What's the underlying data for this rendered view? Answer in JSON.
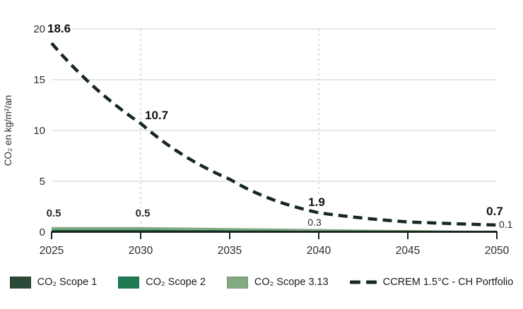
{
  "chart": {
    "y_axis_label": "CO₂ en kg/m²/an",
    "y_ticks": [
      0,
      5,
      10,
      15,
      20
    ],
    "x_ticks": [
      2025,
      2030,
      2035,
      2040,
      2045,
      2050
    ],
    "x_gridline_years": [
      2030,
      2040
    ],
    "y_max": 20,
    "grid": "horizontal solid, vertical dashed at labeled decades",
    "colors": {
      "scope1": "#2c4a3a",
      "scope2": "#1f7a53",
      "scope3": "#83aa81",
      "ccrem_line": "#17291f",
      "gridline": "#cfcfcf",
      "vertical_gridline": "#bdbdbd",
      "tick_text": "#2c2c2c",
      "label_text": "#101010"
    }
  },
  "chart_data": {
    "type": "line+area",
    "x": [
      2025,
      2030,
      2035,
      2040,
      2045,
      2050
    ],
    "area_total": [
      0.5,
      0.5,
      0.4,
      0.3,
      0.2,
      0.1
    ],
    "series": [
      {
        "name": "CO₂ Scope 1",
        "type": "area",
        "color": "#2c4a3a",
        "values": [
          0.1,
          0.1,
          0.08,
          0.06,
          0.04,
          0.02
        ]
      },
      {
        "name": "CO₂ Scope 2",
        "type": "area",
        "color": "#1f7a53",
        "values": [
          0.15,
          0.15,
          0.12,
          0.09,
          0.06,
          0.03
        ]
      },
      {
        "name": "CO₂ Scope 3.13",
        "type": "area",
        "color": "#83aa81",
        "values": [
          0.25,
          0.25,
          0.2,
          0.15,
          0.1,
          0.05
        ]
      }
    ],
    "line": {
      "name": "CCREM 1.5°C - CH Portfolio",
      "color": "#17291f",
      "style": "dashed",
      "values": [
        18.6,
        10.7,
        5.2,
        1.9,
        1.0,
        0.7
      ]
    },
    "line_labels": [
      {
        "year": 2025,
        "text": "18.6"
      },
      {
        "year": 2030,
        "text": "10.7"
      },
      {
        "year": 2040,
        "text": "1.9"
      },
      {
        "year": 2050,
        "text": "0.7"
      }
    ],
    "area_labels": [
      {
        "year": 2025,
        "text": "0.5"
      },
      {
        "year": 2030,
        "text": "0.5"
      },
      {
        "year": 2040,
        "text": "0.3"
      },
      {
        "year": 2050,
        "text": "0.1"
      }
    ],
    "ylim": [
      0,
      20
    ],
    "legend_position": "bottom"
  },
  "legend": {
    "items": [
      {
        "label": "CO₂ Scope 1",
        "marker": "square",
        "color": "#2c4a3a"
      },
      {
        "label": "CO₂ Scope 2",
        "marker": "square",
        "color": "#1f7a53"
      },
      {
        "label": "CO₂ Scope 3.13",
        "marker": "square",
        "color": "#83aa81"
      },
      {
        "label": "CCREM 1.5°C - CH Portfolio",
        "marker": "dash",
        "color": "#17291f"
      }
    ]
  }
}
